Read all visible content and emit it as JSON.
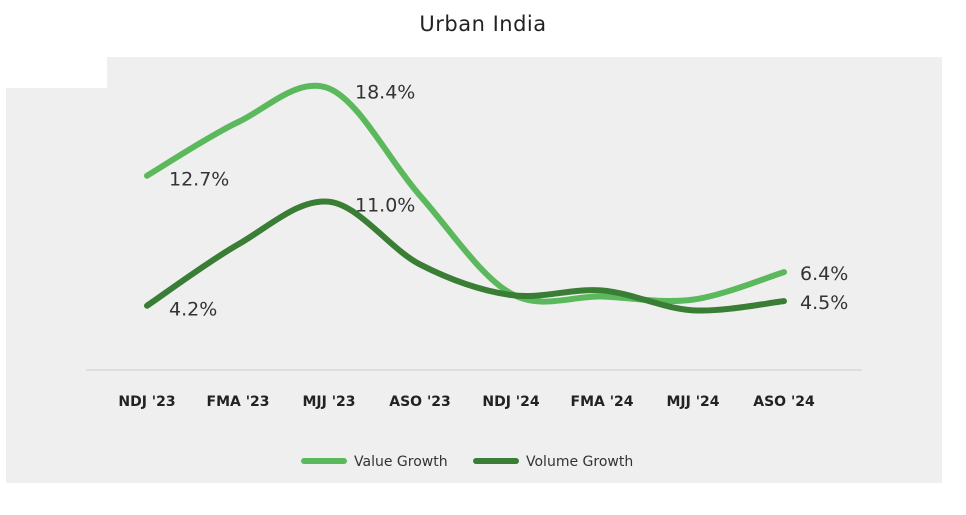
{
  "chart_data": {
    "type": "line",
    "title": "Urban India",
    "categories": [
      "NDJ '23",
      "FMA '23",
      "MJJ '23",
      "ASO '23",
      "NDJ '24",
      "FMA '24",
      "MJJ '24",
      "ASO '24"
    ],
    "ylim": [
      0,
      20
    ],
    "grid": false,
    "legend_position": "bottom",
    "series": [
      {
        "name": "Value Growth",
        "color": "#5bb85c",
        "values": [
          12.7,
          16.2,
          18.4,
          11.4,
          5.0,
          4.8,
          4.6,
          6.4
        ],
        "labels": {
          "0": "12.7%",
          "2": "18.4%",
          "7": "6.4%"
        }
      },
      {
        "name": "Volume Growth",
        "color": "#3a7d34",
        "values": [
          4.2,
          8.2,
          11.0,
          6.9,
          4.9,
          5.2,
          3.9,
          4.5
        ],
        "labels": {
          "0": "4.2%",
          "2": "11.0%",
          "7": "4.5%"
        }
      }
    ]
  }
}
